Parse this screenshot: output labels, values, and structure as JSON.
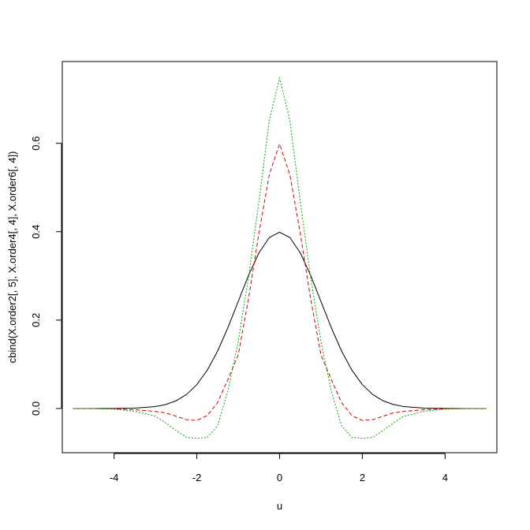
{
  "chart_data": {
    "type": "line",
    "title": "",
    "xlabel": "u",
    "ylabel": "cbind(X.order2[, 5], X.order4[, 4], X.order6[, 4])",
    "xlim": [
      -5.25,
      5.25
    ],
    "ylim": [
      -0.1,
      0.785
    ],
    "xticks": [
      -4,
      -2,
      0,
      2,
      4
    ],
    "xtick_labels": [
      "-4",
      "-2",
      "0",
      "2",
      "4"
    ],
    "yticks": [
      0.0,
      0.2,
      0.4,
      0.6
    ],
    "ytick_labels": [
      "0.0",
      "0.2",
      "0.4",
      "0.6"
    ],
    "grid": false,
    "legend": "none",
    "x": [
      -5,
      -4.5,
      -4,
      -3.5,
      -3,
      -2.75,
      -2.5,
      -2.25,
      -2,
      -1.75,
      -1.5,
      -1.25,
      -1,
      -0.75,
      -0.5,
      -0.25,
      0,
      0.25,
      0.5,
      0.75,
      1,
      1.25,
      1.5,
      1.75,
      2,
      2.25,
      2.5,
      2.75,
      3,
      3.5,
      4,
      4.5,
      5
    ],
    "series": [
      {
        "color": "#000000",
        "dash": "solid",
        "values": [
          0.0,
          0.0,
          0.0001,
          0.0009,
          0.0044,
          0.0091,
          0.0175,
          0.0317,
          0.054,
          0.0863,
          0.1295,
          0.1826,
          0.242,
          0.3011,
          0.3521,
          0.3867,
          0.3989,
          0.3867,
          0.3521,
          0.3011,
          0.242,
          0.1826,
          0.1295,
          0.0863,
          0.054,
          0.0317,
          0.0175,
          0.0091,
          0.0044,
          0.0009,
          0.0001,
          0.0,
          0.0
        ]
      },
      {
        "color": "#cc0000",
        "dash": "dashed",
        "values": [
          0.0,
          -0.0001,
          -0.0006,
          -0.0028,
          -0.0066,
          -0.0099,
          -0.0175,
          -0.0253,
          -0.027,
          -0.0162,
          0.0129,
          0.0654,
          0.121,
          0.2487,
          0.3961,
          0.5286,
          0.5984,
          0.5286,
          0.3961,
          0.2487,
          0.121,
          0.0654,
          0.0129,
          -0.0162,
          -0.027,
          -0.0253,
          -0.0175,
          -0.0099,
          -0.0066,
          -0.0028,
          -0.0006,
          -0.0001,
          0.0
        ]
      },
      {
        "color": "#00aa00",
        "dash": "dotted",
        "values": [
          0.0,
          -0.0002,
          -0.0014,
          -0.0063,
          -0.0175,
          -0.0326,
          -0.05,
          -0.0653,
          -0.0675,
          -0.0654,
          -0.0396,
          0.039,
          0.1513,
          0.2968,
          0.4681,
          0.6512,
          0.748,
          0.6512,
          0.4681,
          0.2968,
          0.1513,
          0.039,
          -0.0396,
          -0.0654,
          -0.0675,
          -0.0653,
          -0.05,
          -0.0326,
          -0.0175,
          -0.0063,
          -0.0014,
          -0.0002,
          0.0
        ]
      }
    ]
  }
}
